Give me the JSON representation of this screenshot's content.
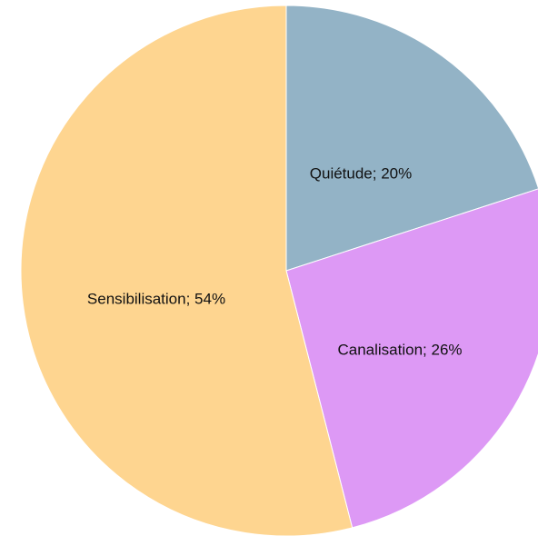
{
  "chart_data": {
    "type": "pie",
    "title": "",
    "legend": "none",
    "label_format": "{name}; {value}%",
    "slices": [
      {
        "name": "Quiétude",
        "value": 20,
        "color": "#93b3c6"
      },
      {
        "name": "Canalisation",
        "value": 26,
        "color": "#dd99f5"
      },
      {
        "name": "Sensibilisation",
        "value": 54,
        "color": "#fed590"
      }
    ],
    "start_angle_deg": 0,
    "direction": "clockwise"
  }
}
